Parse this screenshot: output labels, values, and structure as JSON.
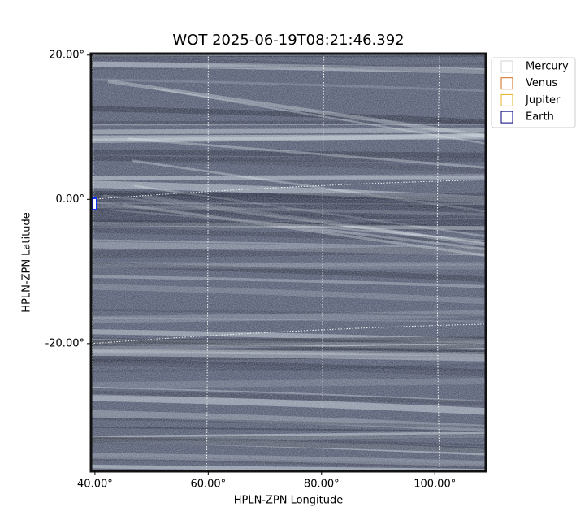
{
  "chart_data": {
    "type": "image",
    "title": "WOT 2025-06-19T08:21:46.392",
    "x_label": "HPLN-ZPN Longitude",
    "y_label": "HPLN-ZPN Latitude",
    "xlim": [
      39.3,
      109
    ],
    "ylim": [
      -37.7,
      20.2
    ],
    "xticks": [
      {
        "value": 40,
        "label": "40.00°"
      },
      {
        "value": 60,
        "label": "60.00°"
      },
      {
        "value": 80,
        "label": "80.00°"
      },
      {
        "value": 100,
        "label": "100.00°"
      }
    ],
    "yticks": [
      {
        "value": 20,
        "label": "20.00°"
      },
      {
        "value": 0,
        "label": "0.00°"
      },
      {
        "value": -20,
        "label": "-20.00°"
      }
    ],
    "grid": true,
    "legend": "upper right",
    "series": [
      {
        "name": "Mercury",
        "color": "#d3d3d3"
      },
      {
        "name": "Venus",
        "color": "#d2691e"
      },
      {
        "name": "Jupiter",
        "color": "#e6b020"
      },
      {
        "name": "Earth",
        "color": "#000080"
      }
    ]
  }
}
